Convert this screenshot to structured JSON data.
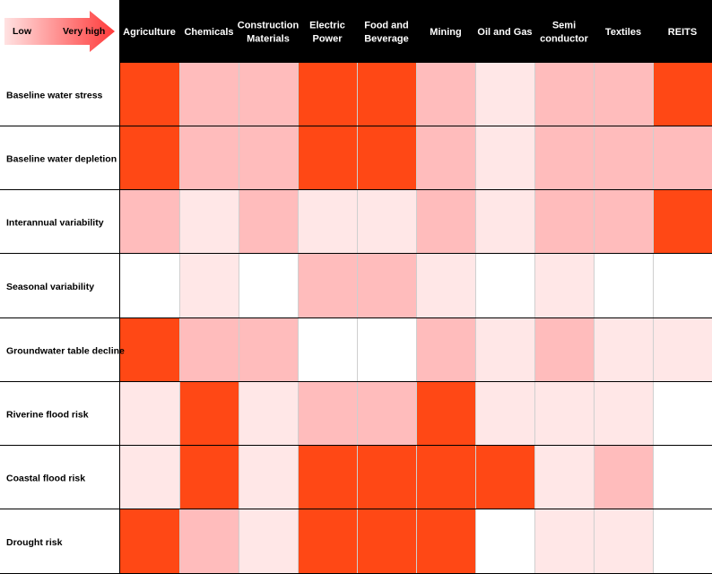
{
  "chart_data": {
    "type": "heatmap",
    "legend": {
      "low_label": "Low",
      "high_label": "Very high",
      "placement": "top-left"
    },
    "columns": [
      [
        "Agriculture"
      ],
      [
        "Chemicals"
      ],
      [
        "Construction",
        "Materials"
      ],
      [
        "Electric",
        "Power"
      ],
      [
        "Food and",
        "Beverage"
      ],
      [
        "Mining"
      ],
      [
        "Oil and Gas"
      ],
      [
        "Semi",
        "conductor"
      ],
      [
        "Textiles"
      ],
      [
        "REITS"
      ]
    ],
    "rows": [
      "Baseline water stress",
      "Baseline water depletion",
      "Interannual variability",
      "Seasonal variability",
      "Groundwater table decline",
      "Riverine flood risk",
      "Coastal flood risk",
      "Drought risk"
    ],
    "levels": [
      [
        4,
        2,
        2,
        4,
        4,
        2,
        1,
        2,
        2,
        4
      ],
      [
        4,
        2,
        2,
        4,
        4,
        2,
        1,
        2,
        2,
        2
      ],
      [
        2,
        1,
        2,
        1,
        1,
        2,
        1,
        2,
        2,
        4
      ],
      [
        0,
        1,
        0,
        2,
        2,
        1,
        0,
        1,
        0,
        0
      ],
      [
        4,
        2,
        2,
        0,
        0,
        2,
        1,
        2,
        1,
        1
      ],
      [
        1,
        4,
        1,
        2,
        2,
        4,
        1,
        1,
        1,
        0
      ],
      [
        1,
        4,
        1,
        4,
        4,
        4,
        4,
        1,
        2,
        0
      ],
      [
        4,
        2,
        1,
        4,
        4,
        4,
        0,
        1,
        1,
        0
      ]
    ],
    "level_colors": [
      "#ffffff",
      "#ffe7e7",
      "#ffbcbc",
      "#ff8f70",
      "#ff4815"
    ],
    "header_background": "#000000",
    "arrow_gradient": [
      "#ffe2e2",
      "#ff3a3a"
    ]
  }
}
